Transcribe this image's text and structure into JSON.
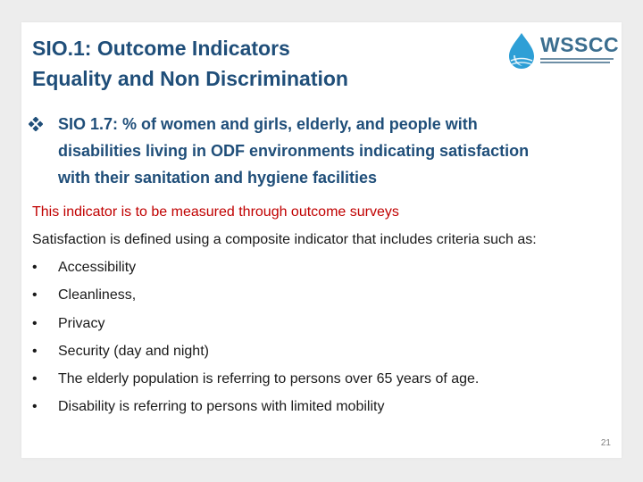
{
  "title": {
    "line1": "SIO.1: Outcome Indicators",
    "line2": "Equality and Non Discrimination"
  },
  "logo": {
    "name": "WSSCC",
    "icon": "water-drop-logo-icon"
  },
  "heading": {
    "bullet_icon": "diamond-bullet-icon",
    "line1": "SIO 1.7: % of women and girls, elderly, and people with",
    "line2": "disabilities living in ODF environments indicating satisfaction",
    "line3": "with their sanitation and hygiene facilities"
  },
  "measure_note": "This indicator is to be measured through outcome surveys",
  "definition": "Satisfaction is defined using a composite indicator that includes criteria such as:",
  "bullets": [
    {
      "symbol": "•",
      "text": "Accessibility"
    },
    {
      "symbol": "•",
      "text": "Cleanliness,"
    },
    {
      "symbol": "•",
      "text": "Privacy"
    },
    {
      "symbol": "•",
      "text": "Security (day and night)"
    },
    {
      "symbol": "•",
      "text": "The elderly population is referring to persons over 65 years of age."
    },
    {
      "symbol": "•",
      "text": "Disability is referring to persons with limited mobility"
    }
  ],
  "slide_number": "21",
  "colors": {
    "title": "#1f4e79",
    "note": "#c00000",
    "body": "#1a1a1a",
    "logo": "#3b6e8f"
  }
}
